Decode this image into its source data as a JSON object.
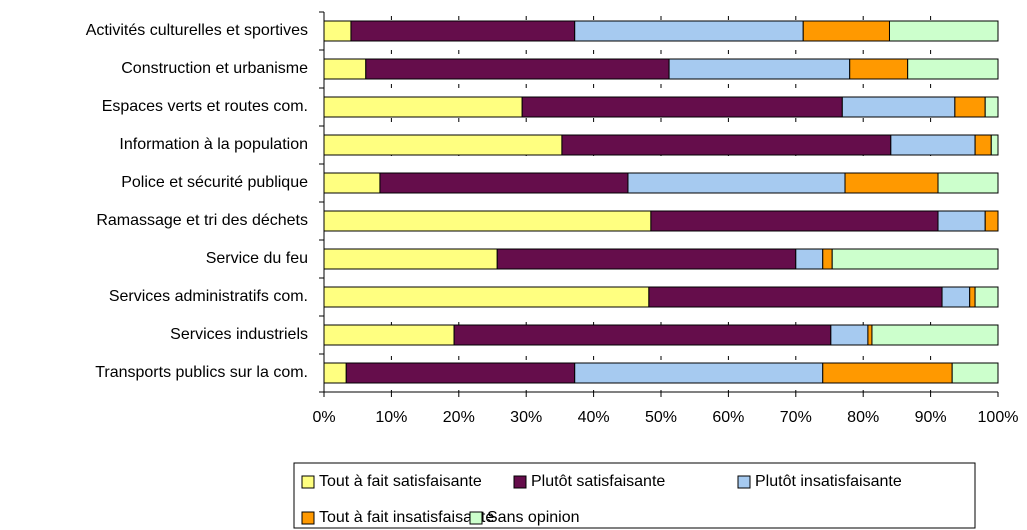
{
  "chart_data": {
    "type": "stacked_bar_horizontal",
    "categories": [
      "Activités culturelles et sportives",
      "Construction et urbanisme",
      "Espaces verts et routes com.",
      "Information à la population",
      "Police et sécurité publique",
      "Ramassage et tri des déchets",
      "Service du feu",
      "Services administratifs com.",
      "Services industriels",
      "Transports publics sur la com."
    ],
    "series": [
      {
        "name": "Tout à fait satisfaisante",
        "color": "#ffff80",
        "values": [
          4.0,
          6.2,
          29.4,
          35.3,
          8.3,
          48.5,
          25.7,
          48.2,
          19.3,
          3.3
        ]
      },
      {
        "name": "Plutôt satisfaisante",
        "color": "#650d4b",
        "values": [
          33.2,
          45.0,
          47.5,
          48.8,
          36.8,
          42.6,
          44.3,
          43.5,
          55.9,
          33.9
        ]
      },
      {
        "name": "Plutôt insatisfaisante",
        "color": "#a6caf0",
        "values": [
          33.9,
          26.8,
          16.7,
          12.5,
          32.2,
          7.0,
          4.0,
          4.1,
          5.5,
          36.8
        ]
      },
      {
        "name": "Tout à fait insatisfaisante",
        "color": "#ff9900",
        "values": [
          12.8,
          8.6,
          4.5,
          2.4,
          13.8,
          1.9,
          1.4,
          0.8,
          0.6,
          19.2
        ]
      },
      {
        "name": "Sans opinion",
        "color": "#ccffcc",
        "values": [
          16.1,
          13.4,
          1.9,
          1.0,
          8.9,
          0.0,
          24.6,
          3.4,
          18.7,
          6.8
        ]
      }
    ],
    "xlim": [
      0,
      100
    ],
    "xticks": [
      {
        "value": 0,
        "label": "0%"
      },
      {
        "value": 10,
        "label": "10%"
      },
      {
        "value": 20,
        "label": "20%"
      },
      {
        "value": 30,
        "label": "30%"
      },
      {
        "value": 40,
        "label": "40%"
      },
      {
        "value": 50,
        "label": "50%"
      },
      {
        "value": 60,
        "label": "60%"
      },
      {
        "value": 70,
        "label": "70%"
      },
      {
        "value": 80,
        "label": "80%"
      },
      {
        "value": 90,
        "label": "90%"
      },
      {
        "value": 100,
        "label": "100%"
      }
    ],
    "grid": true,
    "legend": "bottom"
  }
}
